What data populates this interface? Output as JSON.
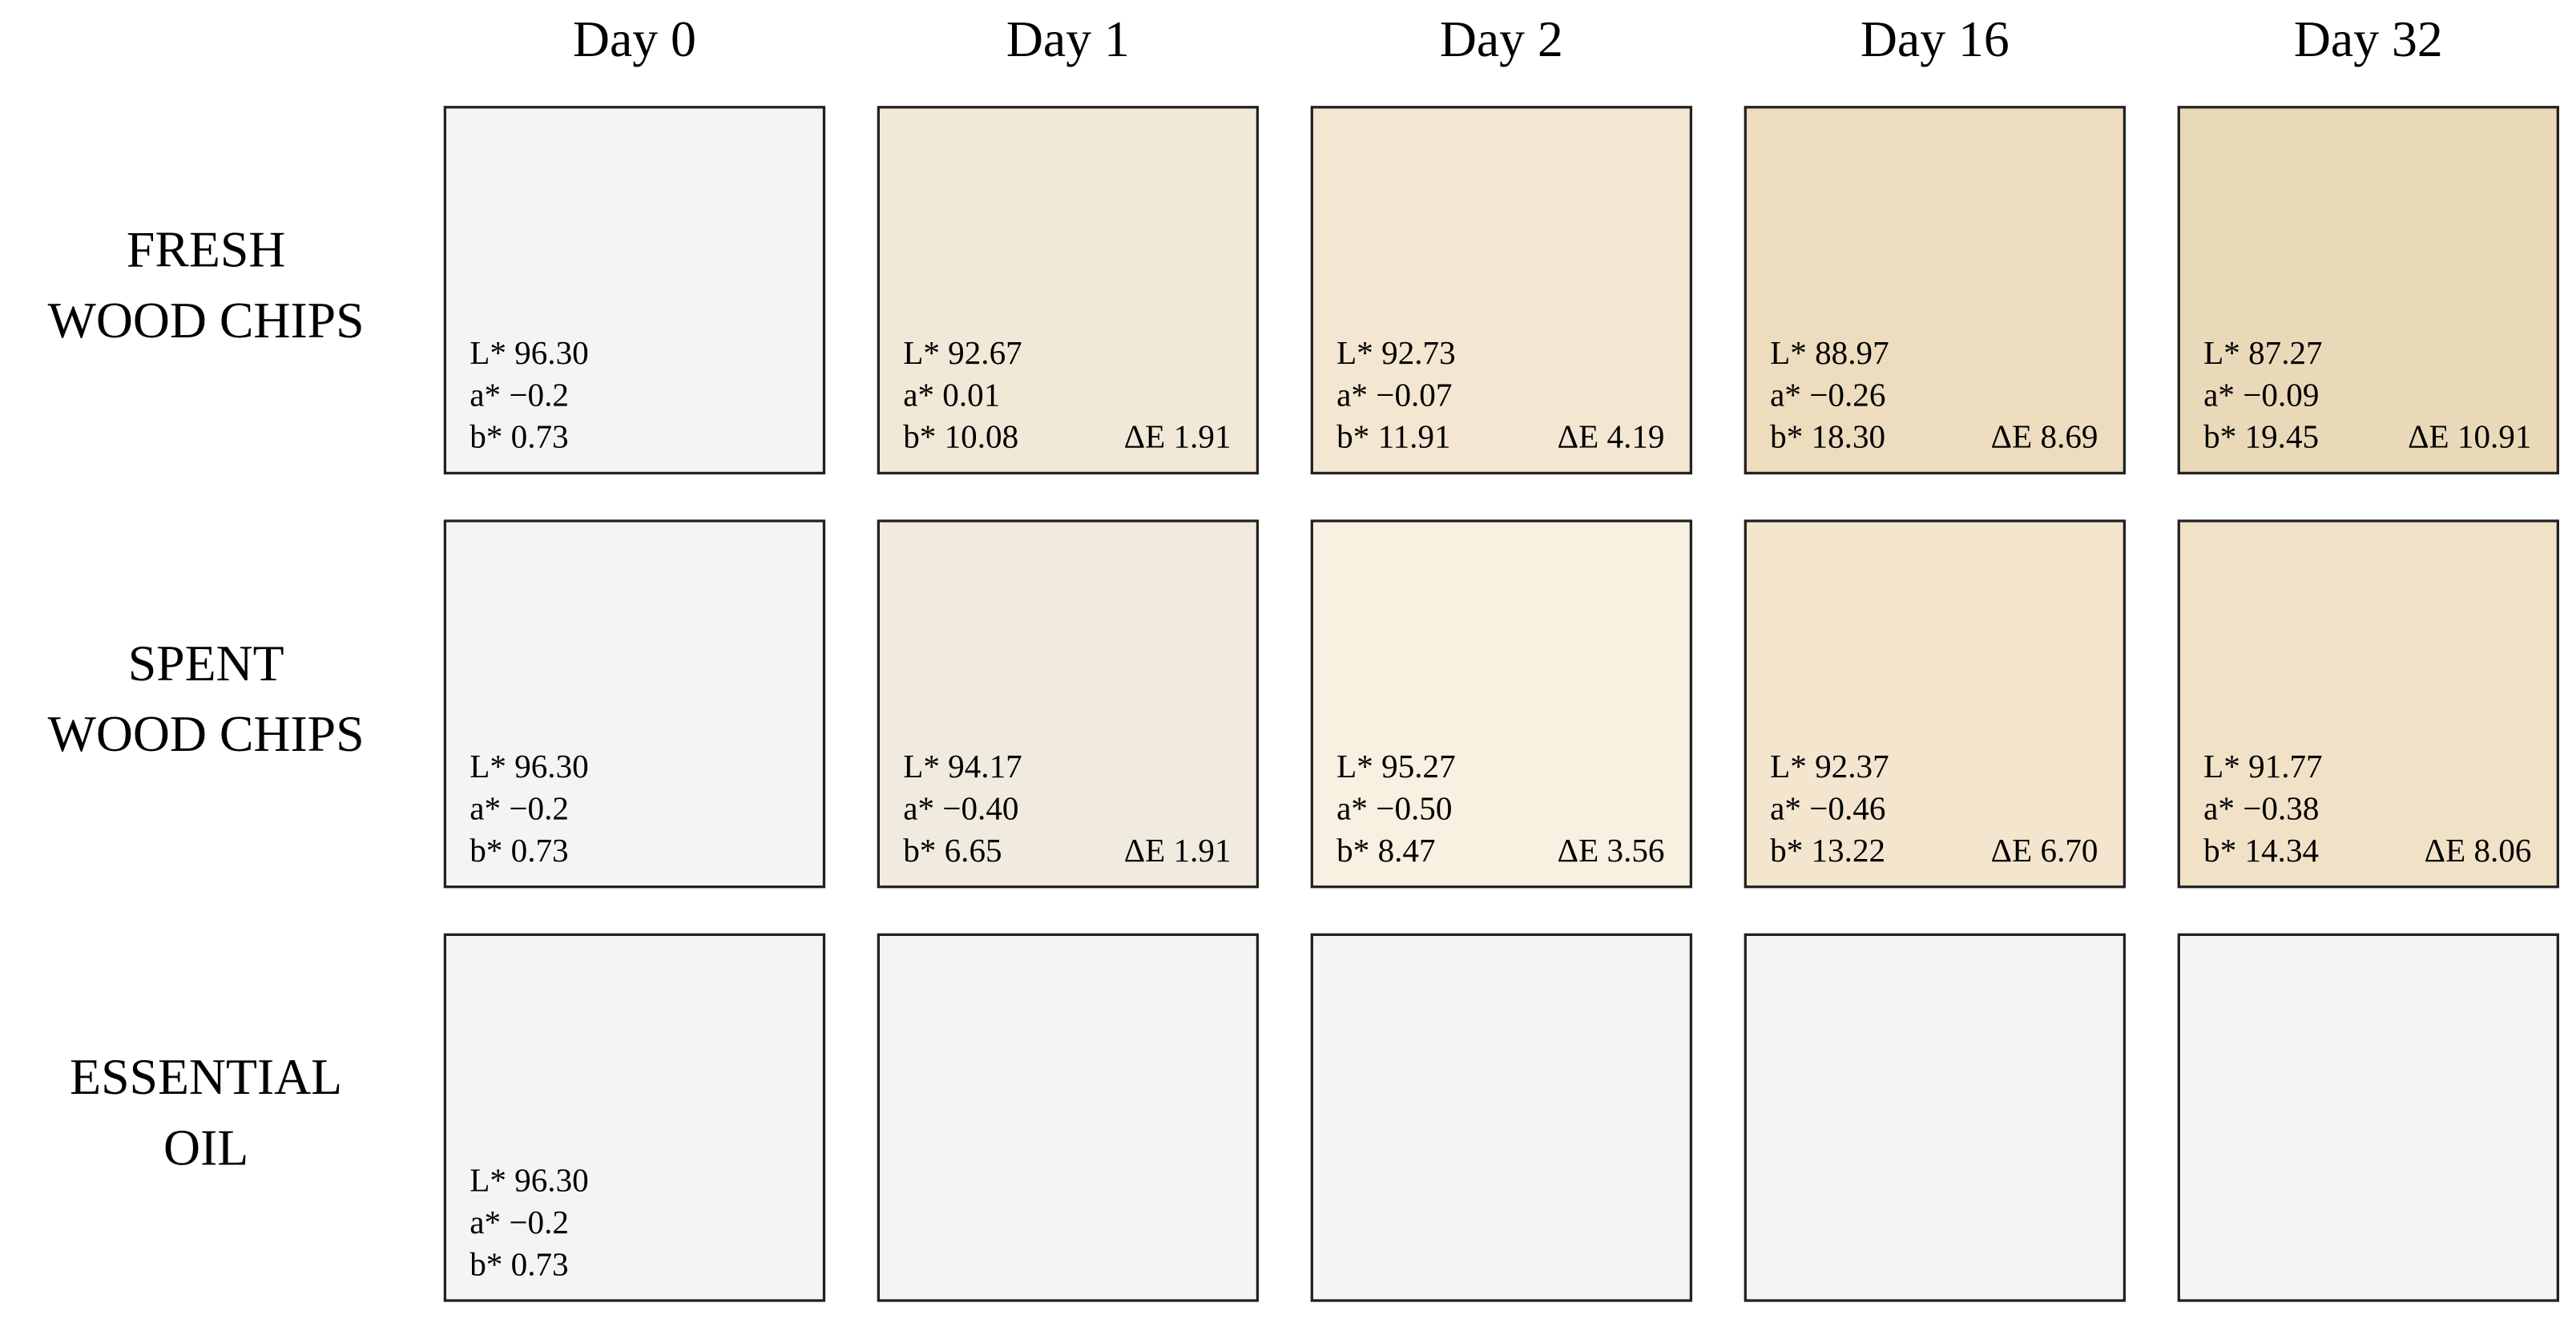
{
  "columns": [
    "Day 0",
    "Day 1",
    "Day 2",
    "Day 16",
    "Day 32"
  ],
  "rows": [
    {
      "label": [
        "FRESH",
        "WOOD CHIPS"
      ],
      "cells": [
        {
          "color": "#f4f4f2",
          "lines": [
            "L* 96.30",
            "a* −0.2",
            "b* 0.73"
          ]
        },
        {
          "color": "#f2e8d8",
          "lines": [
            "L* 92.67",
            "a* 0.01",
            "b* 10.08"
          ],
          "delta": "ΔE 1.91"
        },
        {
          "color": "#f4e7d2",
          "lines": [
            "L* 92.73",
            "a* −0.07",
            "b* 11.91"
          ],
          "delta": "ΔE 4.19"
        },
        {
          "color": "#eddcbd",
          "lines": [
            "L* 88.97",
            "a* −0.26",
            "b* 18.30"
          ],
          "delta": "ΔE 8.69"
        },
        {
          "color": "#ead9b9",
          "lines": [
            "L* 87.27",
            "a* −0.09",
            "b* 19.45"
          ],
          "delta": "ΔE 10.91"
        }
      ]
    },
    {
      "label": [
        "SPENT",
        "WOOD CHIPS"
      ],
      "cells": [
        {
          "color": "#f4f4f2",
          "lines": [
            "L* 96.30",
            "a* −0.2",
            "b* 0.73"
          ]
        },
        {
          "color": "#f1ebdf",
          "lines": [
            "L* 94.17",
            "a* −0.40",
            "b* 6.65"
          ],
          "delta": "ΔE 1.91"
        },
        {
          "color": "#f8f0e0",
          "lines": [
            "L* 95.27",
            "a* −0.50",
            "b* 8.47"
          ],
          "delta": "ΔE 3.56"
        },
        {
          "color": "#f3e5ce",
          "lines": [
            "L* 92.37",
            "a* −0.46",
            "b* 13.22"
          ],
          "delta": "ΔE 6.70"
        },
        {
          "color": "#f1e2c7",
          "lines": [
            "L* 91.77",
            "a* −0.38",
            "b* 14.34"
          ],
          "delta": "ΔE 8.06"
        }
      ]
    },
    {
      "label": [
        "ESSENTIAL",
        "OIL"
      ],
      "cells": [
        {
          "color": "#f4f4f2",
          "lines": [
            "L* 96.30",
            "a* −0.2",
            "b* 0.73"
          ]
        },
        {
          "color": "#f4f4f2"
        },
        {
          "color": "#f4f4f2"
        },
        {
          "color": "#f4f4f2"
        },
        {
          "color": "#f4f4f2"
        }
      ]
    }
  ]
}
